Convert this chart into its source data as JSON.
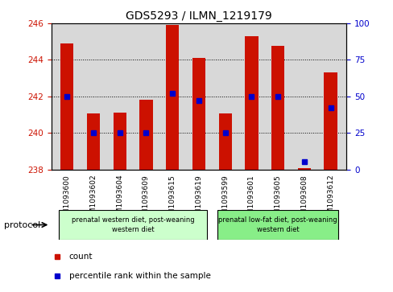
{
  "title": "GDS5293 / ILMN_1219179",
  "samples": [
    "GSM1093600",
    "GSM1093602",
    "GSM1093604",
    "GSM1093609",
    "GSM1093615",
    "GSM1093619",
    "GSM1093599",
    "GSM1093601",
    "GSM1093605",
    "GSM1093608",
    "GSM1093612"
  ],
  "count_values": [
    244.9,
    241.05,
    241.1,
    241.8,
    245.9,
    244.1,
    241.05,
    245.3,
    244.75,
    238.05,
    243.3
  ],
  "percentile_values": [
    50,
    25,
    25,
    25,
    52,
    47,
    25,
    50,
    50,
    5,
    42
  ],
  "ylim_left": [
    238,
    246
  ],
  "ylim_right": [
    0,
    100
  ],
  "yticks_left": [
    238,
    240,
    242,
    244,
    246
  ],
  "yticks_right": [
    0,
    25,
    50,
    75,
    100
  ],
  "bar_color": "#cc1100",
  "dot_color": "#0000cc",
  "protocol_groups": [
    {
      "label": "prenatal western diet, post-weaning\nwestern diet",
      "start": 0,
      "end": 5,
      "color": "#ccffcc"
    },
    {
      "label": "prenatal low-fat diet, post-weaning\nwestern diet",
      "start": 6,
      "end": 10,
      "color": "#88ee88"
    }
  ],
  "protocol_label": "protocol",
  "legend_items": [
    {
      "label": "count",
      "color": "#cc1100"
    },
    {
      "label": "percentile rank within the sample",
      "color": "#0000cc"
    }
  ],
  "background_color": "#ffffff",
  "plot_bg_color": "#d8d8d8",
  "bar_width": 0.5,
  "base_value": 238
}
